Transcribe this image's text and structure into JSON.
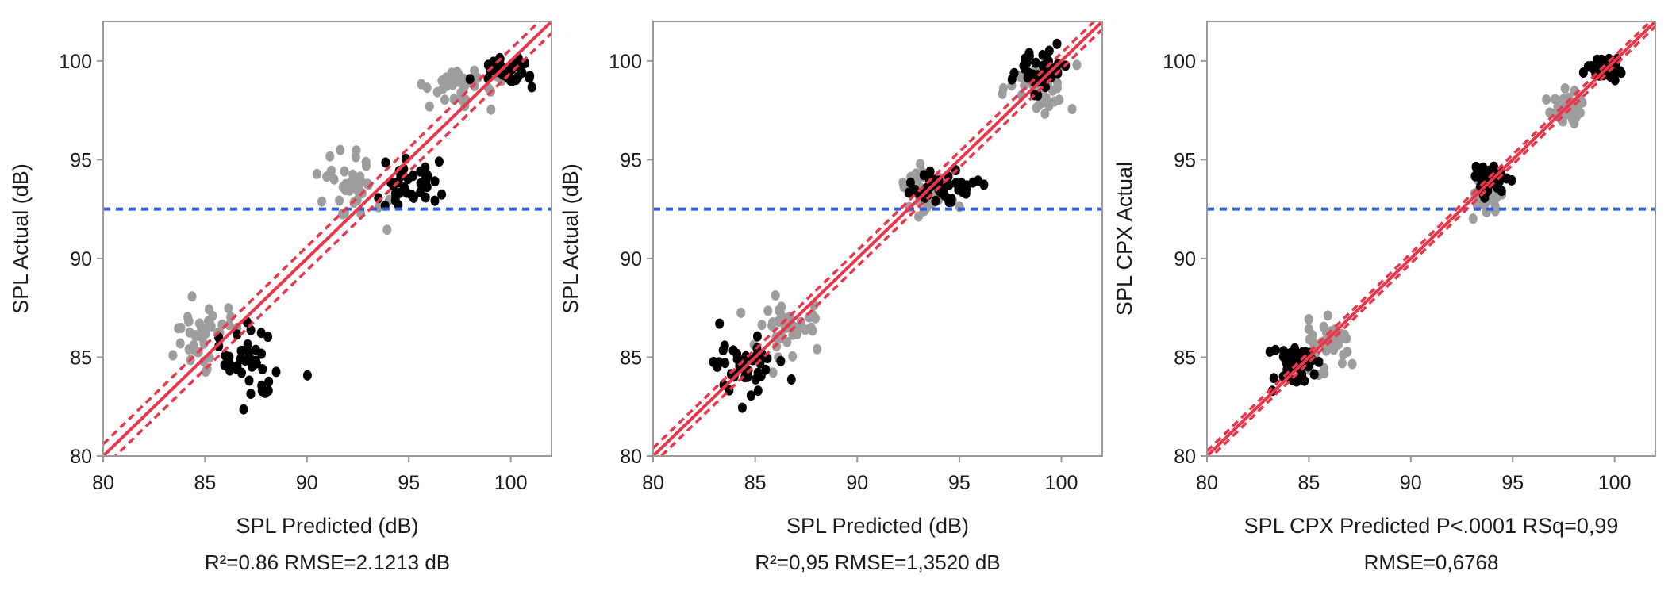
{
  "colors": {
    "fit_line": "#e8374b",
    "mean_line": "#2f5fe0",
    "series_a": "#9d9d9d",
    "series_b": "#000000",
    "frame": "#9a9a9a"
  },
  "chart_data": [
    {
      "type": "scatter",
      "xlabel": "SPL Predicted (dB)",
      "ylabel": "SPL Actual (dB)",
      "caption_lines": [
        "R²=0.86 RMSE=2.1213 dB"
      ],
      "xlim": [
        80,
        102
      ],
      "ylim": [
        80,
        102
      ],
      "xticks": [
        80,
        85,
        90,
        95,
        100
      ],
      "yticks": [
        80,
        85,
        90,
        95,
        100
      ],
      "mean_y": 92.5,
      "fit": {
        "slope": 1.0,
        "intercept": 0.0,
        "ci_offset": 0.6
      },
      "grid": false,
      "series": [
        {
          "color_key": "series_a",
          "clusters": [
            {
              "cx": 85.0,
              "cy": 86.0,
              "sx": 1.1,
              "sy": 1.2,
              "n": 42
            },
            {
              "cx": 92.3,
              "cy": 93.8,
              "sx": 1.1,
              "sy": 1.1,
              "n": 40
            },
            {
              "cx": 97.6,
              "cy": 98.6,
              "sx": 1.2,
              "sy": 0.9,
              "n": 38
            }
          ]
        },
        {
          "color_key": "series_b",
          "clusters": [
            {
              "cx": 87.3,
              "cy": 84.5,
              "sx": 1.0,
              "sy": 1.2,
              "n": 40
            },
            {
              "cx": 95.0,
              "cy": 93.7,
              "sx": 1.1,
              "sy": 0.8,
              "n": 40
            },
            {
              "cx": 99.8,
              "cy": 99.5,
              "sx": 0.9,
              "sy": 0.5,
              "n": 40
            }
          ]
        }
      ]
    },
    {
      "type": "scatter",
      "xlabel": "SPL Predicted (dB)",
      "ylabel": "SPL Actual (dB)",
      "caption_lines": [
        "R²=0,95 RMSE=1,3520 dB"
      ],
      "xlim": [
        80,
        102
      ],
      "ylim": [
        80,
        102
      ],
      "xticks": [
        80,
        85,
        90,
        95,
        100
      ],
      "yticks": [
        80,
        85,
        90,
        95,
        100
      ],
      "mean_y": 92.5,
      "fit": {
        "slope": 1.0,
        "intercept": 0.0,
        "ci_offset": 0.4
      },
      "grid": false,
      "series": [
        {
          "color_key": "series_a",
          "clusters": [
            {
              "cx": 86.5,
              "cy": 86.5,
              "sx": 1.1,
              "sy": 1.1,
              "n": 40
            },
            {
              "cx": 93.3,
              "cy": 93.5,
              "sx": 0.9,
              "sy": 0.8,
              "n": 40
            },
            {
              "cx": 98.8,
              "cy": 98.7,
              "sx": 1.0,
              "sy": 0.9,
              "n": 40
            }
          ]
        },
        {
          "color_key": "series_b",
          "clusters": [
            {
              "cx": 84.3,
              "cy": 84.5,
              "sx": 1.0,
              "sy": 1.0,
              "n": 40
            },
            {
              "cx": 94.0,
              "cy": 93.8,
              "sx": 1.2,
              "sy": 0.7,
              "n": 40
            },
            {
              "cx": 98.9,
              "cy": 99.4,
              "sx": 0.8,
              "sy": 0.6,
              "n": 40
            }
          ]
        }
      ]
    },
    {
      "type": "scatter",
      "xlabel": "SPL CPX Predicted P<.0001 RSq=0,99",
      "ylabel": "SPL CPX Actual",
      "caption_lines": [
        "RMSE=0,6768"
      ],
      "xlim": [
        80,
        102
      ],
      "ylim": [
        80,
        102
      ],
      "xticks": [
        80,
        85,
        90,
        95,
        100
      ],
      "yticks": [
        80,
        85,
        90,
        95,
        100
      ],
      "mean_y": 92.5,
      "fit": {
        "slope": 1.0,
        "intercept": 0.0,
        "ci_offset": 0.25
      },
      "grid": false,
      "series": [
        {
          "color_key": "series_a",
          "clusters": [
            {
              "cx": 85.8,
              "cy": 85.7,
              "sx": 0.9,
              "sy": 1.0,
              "n": 40
            },
            {
              "cx": 93.7,
              "cy": 93.2,
              "sx": 0.6,
              "sy": 0.6,
              "n": 40
            },
            {
              "cx": 97.6,
              "cy": 97.6,
              "sx": 0.7,
              "sy": 0.6,
              "n": 40
            }
          ]
        },
        {
          "color_key": "series_b",
          "clusters": [
            {
              "cx": 84.2,
              "cy": 84.6,
              "sx": 0.7,
              "sy": 0.8,
              "n": 40
            },
            {
              "cx": 93.9,
              "cy": 93.9,
              "sx": 0.6,
              "sy": 0.5,
              "n": 40
            },
            {
              "cx": 99.5,
              "cy": 99.6,
              "sx": 0.6,
              "sy": 0.4,
              "n": 40
            }
          ]
        }
      ]
    }
  ]
}
